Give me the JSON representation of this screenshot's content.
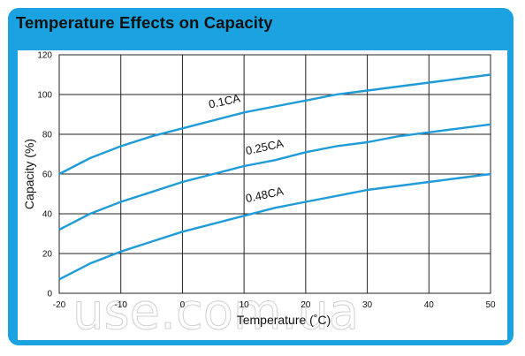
{
  "title": "Temperature Effects on Capacity",
  "watermark": "use.com.ua",
  "colors": {
    "frame": "#1aa3e0",
    "curve": "#1f9bd7",
    "grid": "#222222"
  },
  "chart_data": {
    "type": "line",
    "title": "Temperature Effects on Capacity",
    "xlabel": "Temperature (˚C)",
    "ylabel": "Capacity (%)",
    "xlim": [
      -20,
      50
    ],
    "ylim": [
      0,
      120
    ],
    "xticks": [
      -20,
      -10,
      0,
      10,
      20,
      30,
      40,
      50
    ],
    "yticks": [
      0,
      20,
      40,
      60,
      80,
      100,
      120
    ],
    "grid": true,
    "series": [
      {
        "name": "0.1CA",
        "x": [
          -20,
          -15,
          -10,
          -5,
          0,
          5,
          10,
          15,
          20,
          25,
          30,
          35,
          40,
          45,
          50
        ],
        "values": [
          60,
          68,
          74,
          79,
          83,
          87,
          91,
          94,
          97,
          100,
          102,
          104,
          106,
          108,
          110
        ]
      },
      {
        "name": "0.25CA",
        "x": [
          -20,
          -15,
          -10,
          -5,
          0,
          5,
          10,
          15,
          20,
          25,
          30,
          35,
          40,
          45,
          50
        ],
        "values": [
          32,
          40,
          46,
          51,
          56,
          60,
          64,
          67,
          71,
          74,
          76,
          79,
          81,
          83,
          85
        ]
      },
      {
        "name": "0.48CA",
        "x": [
          -20,
          -15,
          -10,
          -5,
          0,
          5,
          10,
          15,
          20,
          25,
          30,
          35,
          40,
          45,
          50
        ],
        "values": [
          7,
          15,
          21,
          26,
          31,
          35,
          39,
          43,
          46,
          49,
          52,
          54,
          56,
          58,
          60
        ]
      }
    ]
  }
}
